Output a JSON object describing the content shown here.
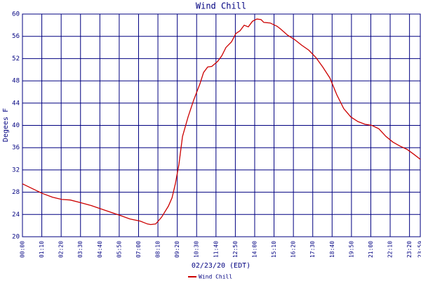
{
  "chart_data": {
    "type": "line",
    "title": "Wind Chill",
    "xlabel": "02/23/20 (EDT)",
    "ylabel": "Degees F",
    "x": [
      0,
      71,
      109,
      142,
      173,
      213,
      249,
      284,
      325,
      355,
      388,
      426,
      452,
      464,
      482,
      503,
      528,
      541,
      553,
      566,
      579,
      599,
      619,
      642,
      655,
      670,
      685,
      706,
      721,
      736,
      756,
      772,
      787,
      802,
      817,
      832,
      848,
      863,
      873,
      896,
      921,
      934,
      959,
      985,
      1010,
      1036,
      1061,
      1086,
      1112,
      1137,
      1162,
      1188,
      1213,
      1239,
      1264,
      1289,
      1315,
      1340,
      1365,
      1391,
      1416,
      1439
    ],
    "series": [
      {
        "name": "Wind Chill",
        "color": "#cc0000",
        "values": [
          29.5,
          27.8,
          27.1,
          26.7,
          26.6,
          26.1,
          25.6,
          25.0,
          24.3,
          23.8,
          23.2,
          22.8,
          22.3,
          22.2,
          22.3,
          23.5,
          25.5,
          27,
          29.5,
          33,
          38,
          41.5,
          44.5,
          47.5,
          49.5,
          50.5,
          50.6,
          51.5,
          52.5,
          54,
          55,
          56.5,
          57,
          58,
          57.7,
          58.7,
          59.1,
          59,
          58.5,
          58.4,
          57.8,
          57.3,
          56.2,
          55.4,
          54.4,
          53.5,
          52.2,
          50.5,
          48.5,
          45.5,
          43,
          41.5,
          40.7,
          40.2,
          40,
          39.4,
          38,
          37,
          36.3,
          35.7,
          34.8,
          33.9
        ]
      }
    ],
    "xlim": [
      0,
      1439
    ],
    "ylim": [
      20,
      60
    ],
    "xticks": [
      {
        "value": 0,
        "label": "00:00"
      },
      {
        "value": 70,
        "label": "01:10"
      },
      {
        "value": 140,
        "label": "02:20"
      },
      {
        "value": 210,
        "label": "03:30"
      },
      {
        "value": 280,
        "label": "04:40"
      },
      {
        "value": 350,
        "label": "05:50"
      },
      {
        "value": 420,
        "label": "07:00"
      },
      {
        "value": 490,
        "label": "08:10"
      },
      {
        "value": 560,
        "label": "09:20"
      },
      {
        "value": 630,
        "label": "10:30"
      },
      {
        "value": 700,
        "label": "11:40"
      },
      {
        "value": 770,
        "label": "12:50"
      },
      {
        "value": 840,
        "label": "14:00"
      },
      {
        "value": 910,
        "label": "15:10"
      },
      {
        "value": 980,
        "label": "16:20"
      },
      {
        "value": 1050,
        "label": "17:30"
      },
      {
        "value": 1120,
        "label": "18:40"
      },
      {
        "value": 1190,
        "label": "19:50"
      },
      {
        "value": 1260,
        "label": "21:00"
      },
      {
        "value": 1330,
        "label": "22:10"
      },
      {
        "value": 1400,
        "label": "23:20"
      },
      {
        "value": 1439,
        "label": "23:59"
      }
    ],
    "yticks": [
      20,
      24,
      28,
      32,
      36,
      40,
      44,
      48,
      52,
      56,
      60
    ],
    "grid": true
  }
}
